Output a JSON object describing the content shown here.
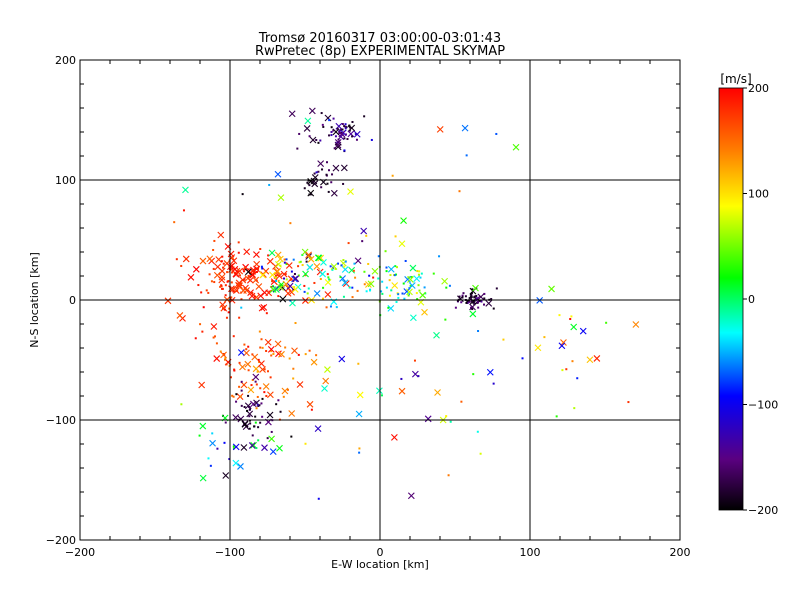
{
  "chart_data": {
    "type": "scatter",
    "title": "Tromsø 20160317 03:00:00-03:01:43",
    "subtitle": "RwPretec (8p) EXPERIMENTAL SKYMAP",
    "xlabel": "E-W location [km]",
    "ylabel": "N-S location [km]",
    "xlim": [
      -200,
      200
    ],
    "ylim": [
      -200,
      200
    ],
    "xticks": [
      "−200",
      "−100",
      "0",
      "100",
      "200"
    ],
    "yticks": [
      "200",
      "100",
      "0",
      "−100",
      "−200"
    ],
    "grid": true,
    "grid_lines_x": [
      -100,
      0,
      100
    ],
    "grid_lines_y": [
      -100,
      0,
      100
    ],
    "colorbar": {
      "unit": "[m/s]",
      "min": -200,
      "max": 200,
      "ticks": [
        "200",
        "100",
        "0",
        "−100",
        "−200"
      ],
      "colormap": [
        "#000000",
        "#5a0080",
        "#0000ff",
        "#00ffff",
        "#00ff00",
        "#ffff00",
        "#ff8000",
        "#ff0000"
      ]
    },
    "markers": {
      "x_symbol": "×",
      "dot_symbol": "·"
    },
    "clusters": [
      {
        "cx": -25,
        "cy": 140,
        "sx": 6,
        "sy": 6,
        "n": 45,
        "vmin": -200,
        "vmax": -110,
        "xfrac": 0.15
      },
      {
        "cx": -40,
        "cy": 140,
        "sx": 10,
        "sy": 8,
        "n": 18,
        "vmin": -200,
        "vmax": -150,
        "xfrac": 0.3
      },
      {
        "cx": -40,
        "cy": 100,
        "sx": 7,
        "sy": 8,
        "n": 30,
        "vmin": -200,
        "vmax": -160,
        "xfrac": 0.3
      },
      {
        "cx": -95,
        "cy": 20,
        "sx": 15,
        "sy": 12,
        "n": 120,
        "vmin": 160,
        "vmax": 200,
        "xfrac": 0.5
      },
      {
        "cx": -60,
        "cy": 20,
        "sx": 12,
        "sy": 10,
        "n": 70,
        "vmin": -200,
        "vmax": 200,
        "xfrac": 0.45
      },
      {
        "cx": -25,
        "cy": 20,
        "sx": 14,
        "sy": 12,
        "n": 60,
        "vmin": -100,
        "vmax": 200,
        "xfrac": 0.4
      },
      {
        "cx": 15,
        "cy": 15,
        "sx": 14,
        "sy": 14,
        "n": 70,
        "vmin": -80,
        "vmax": 120,
        "xfrac": 0.3
      },
      {
        "cx": 62,
        "cy": 2,
        "sx": 7,
        "sy": 4,
        "n": 60,
        "vmin": -200,
        "vmax": -140,
        "xfrac": 0.15
      },
      {
        "cx": -80,
        "cy": -60,
        "sx": 18,
        "sy": 15,
        "n": 80,
        "vmin": 120,
        "vmax": 200,
        "xfrac": 0.4
      },
      {
        "cx": -85,
        "cy": -95,
        "sx": 10,
        "sy": 12,
        "n": 50,
        "vmin": -200,
        "vmax": -150,
        "xfrac": 0.35
      },
      {
        "cx": -95,
        "cy": -120,
        "sx": 12,
        "sy": 10,
        "n": 25,
        "vmin": -140,
        "vmax": 40,
        "xfrac": 0.5
      },
      {
        "cx": -110,
        "cy": -10,
        "sx": 10,
        "sy": 30,
        "n": 35,
        "vmin": 150,
        "vmax": 200,
        "xfrac": 0.3
      },
      {
        "cx": 120,
        "cy": -40,
        "sx": 20,
        "sy": 20,
        "n": 20,
        "vmin": -120,
        "vmax": 200,
        "xfrac": 0.5
      },
      {
        "cx": 0,
        "cy": 60,
        "sx": 60,
        "sy": 80,
        "n": 40,
        "vmin": -200,
        "vmax": 200,
        "xfrac": 0.5
      },
      {
        "cx": 20,
        "cy": -80,
        "sx": 50,
        "sy": 40,
        "n": 35,
        "vmin": -200,
        "vmax": 200,
        "xfrac": 0.4
      }
    ]
  }
}
